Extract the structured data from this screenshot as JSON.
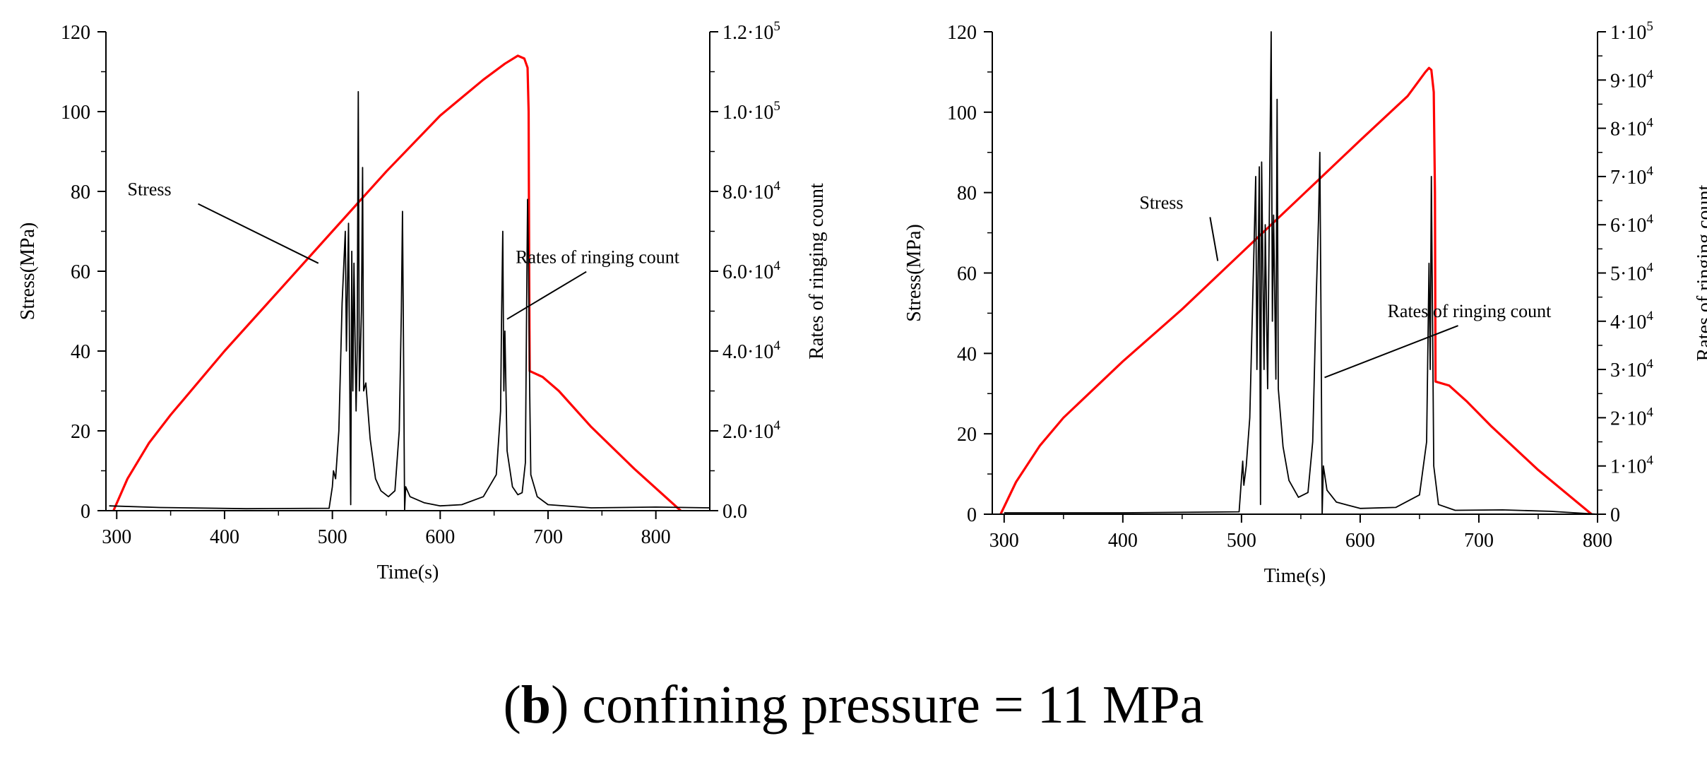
{
  "figure_caption": {
    "prefix": "(",
    "letter": "b",
    "text": ") confining pressure = 11 MPa"
  },
  "chart_data": [
    {
      "type": "line",
      "title": "",
      "xlabel": "Time(s)",
      "ylabel": "Stress(MPa)",
      "y2label": "Rates of ringing count",
      "xlim": [
        290,
        850
      ],
      "ylim": [
        0,
        120
      ],
      "y2lim": [
        0,
        120000
      ],
      "xticks": [
        "300",
        "400",
        "500",
        "600",
        "700",
        "800"
      ],
      "yticks": [
        "0",
        "20",
        "40",
        "60",
        "80",
        "100",
        "120"
      ],
      "y2ticks": [
        {
          "mant": "0.0",
          "exp": ""
        },
        {
          "mant": "2.0·10",
          "exp": "4"
        },
        {
          "mant": "4.0·10",
          "exp": "4"
        },
        {
          "mant": "6.0·10",
          "exp": "4"
        },
        {
          "mant": "8.0·10",
          "exp": "4"
        },
        {
          "mant": "1.0·10",
          "exp": "5"
        },
        {
          "mant": "1.2·10",
          "exp": "5"
        }
      ],
      "annotations": [
        {
          "text": "Stress",
          "text_at": [
            310,
            79
          ],
          "arrow_to": [
            487,
            62
          ]
        },
        {
          "text": "Rates of ringing count",
          "text_at": [
            670,
            62
          ],
          "arrow_to": [
            662,
            48
          ]
        }
      ],
      "series": [
        {
          "name": "Stress",
          "axis": "left",
          "color": "#ff0000",
          "points": [
            [
              297,
              0
            ],
            [
              310,
              8
            ],
            [
              330,
              17
            ],
            [
              350,
              24
            ],
            [
              400,
              40
            ],
            [
              450,
              55
            ],
            [
              500,
              70
            ],
            [
              550,
              85
            ],
            [
              600,
              99
            ],
            [
              640,
              108
            ],
            [
              660,
              112
            ],
            [
              672,
              114
            ],
            [
              678,
              113.3
            ],
            [
              681,
              111
            ],
            [
              682,
              100
            ],
            [
              682.5,
              60
            ],
            [
              683,
              35
            ],
            [
              695,
              33.5
            ],
            [
              710,
              30
            ],
            [
              740,
              21
            ],
            [
              780,
              10.5
            ],
            [
              823,
              0
            ]
          ]
        },
        {
          "name": "Rates of ringing count",
          "axis": "right",
          "color": "#000000",
          "points": [
            [
              293,
              1200
            ],
            [
              340,
              800
            ],
            [
              420,
              500
            ],
            [
              497,
              600
            ],
            [
              500,
              6000
            ],
            [
              501,
              10000
            ],
            [
              503,
              8000
            ],
            [
              506,
              20000
            ],
            [
              509,
              52000
            ],
            [
              512,
              70000
            ],
            [
              513,
              40000
            ],
            [
              515,
              72000
            ],
            [
              517,
              1500
            ],
            [
              518,
              65000
            ],
            [
              519,
              30000
            ],
            [
              520,
              62000
            ],
            [
              522,
              25000
            ],
            [
              523,
              40000
            ],
            [
              524,
              105000
            ],
            [
              525,
              30000
            ],
            [
              527,
              50000
            ],
            [
              528,
              86000
            ],
            [
              529,
              30000
            ],
            [
              531,
              32000
            ],
            [
              535,
              18000
            ],
            [
              540,
              8000
            ],
            [
              545,
              5000
            ],
            [
              552,
              3500
            ],
            [
              558,
              5000
            ],
            [
              562,
              20000
            ],
            [
              564,
              50000
            ],
            [
              565,
              75000
            ],
            [
              566,
              40000
            ],
            [
              567,
              0
            ],
            [
              568,
              6000
            ],
            [
              572,
              3500
            ],
            [
              585,
              2000
            ],
            [
              600,
              1200
            ],
            [
              620,
              1500
            ],
            [
              640,
              3500
            ],
            [
              652,
              9000
            ],
            [
              656,
              25000
            ],
            [
              657,
              50000
            ],
            [
              658,
              70000
            ],
            [
              659,
              30000
            ],
            [
              660,
              45000
            ],
            [
              662,
              15000
            ],
            [
              667,
              6000
            ],
            [
              672,
              4000
            ],
            [
              676,
              4500
            ],
            [
              679,
              12000
            ],
            [
              680,
              45000
            ],
            [
              681,
              78000
            ],
            [
              682,
              60000
            ],
            [
              683,
              30000
            ],
            [
              684,
              9000
            ],
            [
              690,
              3500
            ],
            [
              700,
              1500
            ],
            [
              740,
              700
            ],
            [
              800,
              900
            ],
            [
              850,
              700
            ]
          ]
        }
      ]
    },
    {
      "type": "line",
      "title": "",
      "xlabel": "Time(s)",
      "ylabel": "Stress(MPa)",
      "y2label": "Rates of ringing count",
      "xlim": [
        290,
        800
      ],
      "ylim": [
        0,
        120
      ],
      "y2lim": [
        0,
        100000
      ],
      "xticks": [
        "300",
        "400",
        "500",
        "600",
        "700",
        "800"
      ],
      "yticks": [
        "0",
        "20",
        "40",
        "60",
        "80",
        "100",
        "120"
      ],
      "y2ticks": [
        {
          "mant": "0",
          "exp": ""
        },
        {
          "mant": "1·10",
          "exp": "4"
        },
        {
          "mant": "2·10",
          "exp": "4"
        },
        {
          "mant": "3·10",
          "exp": "4"
        },
        {
          "mant": "4·10",
          "exp": "4"
        },
        {
          "mant": "5·10",
          "exp": "4"
        },
        {
          "mant": "6·10",
          "exp": "4"
        },
        {
          "mant": "7·10",
          "exp": "4"
        },
        {
          "mant": "8·10",
          "exp": "4"
        },
        {
          "mant": "9·10",
          "exp": "4"
        },
        {
          "mant": "1·10",
          "exp": "5"
        }
      ],
      "annotations": [
        {
          "text": "Stress",
          "text_at": [
            414,
            76
          ],
          "arrow_to": [
            480,
            63
          ]
        },
        {
          "text": "Rates of ringing count",
          "text_at": [
            623,
            49
          ],
          "arrow_to": [
            570,
            34
          ]
        }
      ],
      "series": [
        {
          "name": "Stress",
          "axis": "left",
          "color": "#ff0000",
          "points": [
            [
              297,
              0
            ],
            [
              310,
              8
            ],
            [
              330,
              17
            ],
            [
              350,
              24
            ],
            [
              400,
              38
            ],
            [
              450,
              51
            ],
            [
              500,
              65
            ],
            [
              550,
              79
            ],
            [
              600,
              93
            ],
            [
              640,
              104
            ],
            [
              655,
              110
            ],
            [
              658,
              111
            ],
            [
              660,
              110.5
            ],
            [
              662,
              105
            ],
            [
              663,
              80
            ],
            [
              663.5,
              33
            ],
            [
              675,
              32
            ],
            [
              690,
              28
            ],
            [
              710,
              22
            ],
            [
              750,
              11
            ],
            [
              795,
              0
            ]
          ]
        },
        {
          "name": "Rates of ringing count",
          "axis": "right",
          "color": "#000000",
          "points": [
            [
              300,
              300
            ],
            [
              400,
              300
            ],
            [
              498,
              500
            ],
            [
              501,
              11000
            ],
            [
              502,
              6000
            ],
            [
              504,
              10000
            ],
            [
              507,
              20000
            ],
            [
              510,
              50000
            ],
            [
              512,
              70000
            ],
            [
              513,
              30000
            ],
            [
              515,
              72000
            ],
            [
              516,
              2000
            ],
            [
              517,
              73000
            ],
            [
              519,
              30000
            ],
            [
              520,
              60000
            ],
            [
              522,
              26000
            ],
            [
              523,
              50000
            ],
            [
              525,
              100000
            ],
            [
              526,
              40000
            ],
            [
              527,
              62000
            ],
            [
              529,
              28000
            ],
            [
              530,
              86000
            ],
            [
              531,
              26000
            ],
            [
              535,
              14000
            ],
            [
              540,
              7000
            ],
            [
              548,
              3500
            ],
            [
              556,
              4500
            ],
            [
              560,
              15000
            ],
            [
              563,
              45000
            ],
            [
              565,
              62000
            ],
            [
              566,
              75000
            ],
            [
              567,
              40000
            ],
            [
              568,
              0
            ],
            [
              569,
              10000
            ],
            [
              572,
              5000
            ],
            [
              580,
              2500
            ],
            [
              600,
              1200
            ],
            [
              630,
              1400
            ],
            [
              650,
              4000
            ],
            [
              656,
              15000
            ],
            [
              658,
              52000
            ],
            [
              659,
              30000
            ],
            [
              660,
              70000
            ],
            [
              661,
              40000
            ],
            [
              662,
              10000
            ],
            [
              666,
              2000
            ],
            [
              680,
              800
            ],
            [
              720,
              900
            ],
            [
              760,
              600
            ],
            [
              800,
              0
            ]
          ]
        }
      ]
    }
  ]
}
